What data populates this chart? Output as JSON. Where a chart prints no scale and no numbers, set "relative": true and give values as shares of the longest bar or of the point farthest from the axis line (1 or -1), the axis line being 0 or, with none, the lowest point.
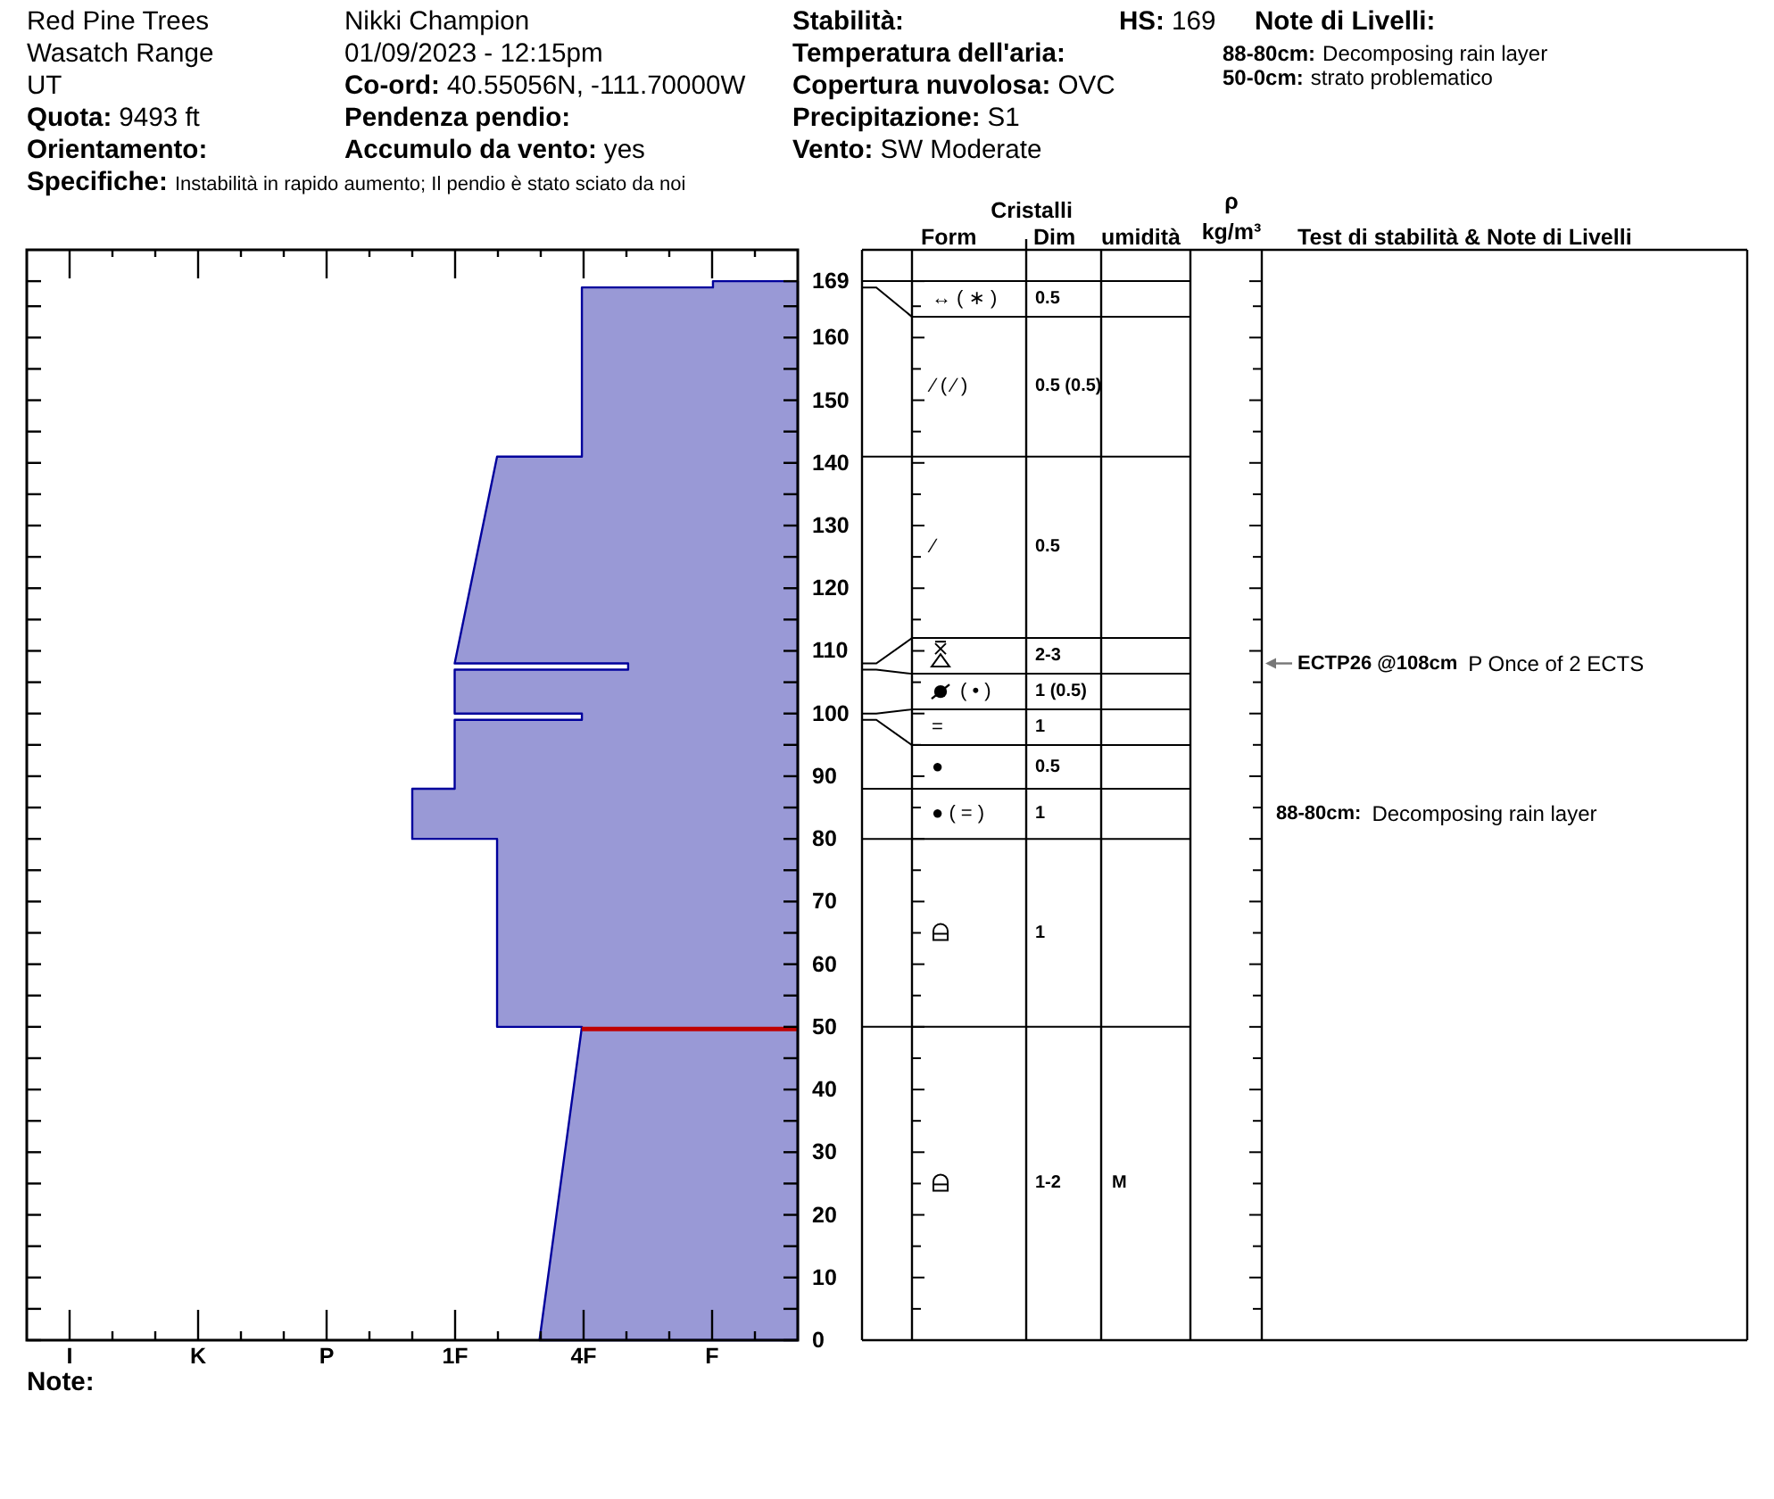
{
  "chart_data": [
    {
      "type": "other",
      "annotations": [
        "Red Pine Trees",
        "Wasatch Range",
        "UT",
        "Quota: 9493 ft",
        "Orientamento:",
        "Specifiche: Instabilità in rapido aumento; Il pendio è stato sciato da noi",
        "Nikki Champion",
        "01/09/2023 - 12:15pm",
        "Co-ord: 40.55056N, -111.70000W",
        "Pendenza pendio:",
        "Accumulo da vento: yes",
        "Stabilità:",
        "Temperatura dell'aria:",
        "Copertura nuvolosa: OVC",
        "Precipitazione: S1",
        "Vento: SW Moderate",
        "HS: 169",
        "Note di Livelli:",
        "88-80cm: Decomposing rain layer",
        "50-0cm: strato problematico",
        "Note:"
      ]
    },
    {
      "type": "area",
      "orientation": "horizontal",
      "relative": true,
      "color": "#9999d6",
      "x": [
        169,
        168,
        168,
        141,
        141,
        108,
        108,
        107,
        107,
        100,
        100,
        99,
        99,
        88,
        88,
        80,
        80,
        50,
        50,
        0
      ],
      "values": [
        -0.22,
        -0.22,
        -0.56,
        -0.56,
        -0.78,
        -0.89,
        -0.44,
        -0.44,
        -0.89,
        -0.89,
        -0.56,
        -0.56,
        -0.89,
        -0.89,
        -1,
        -1,
        -0.78,
        -0.78,
        -0.56,
        -0.67
      ],
      "annotations": [
        "I",
        "K",
        "P",
        "1F",
        "4F",
        "F"
      ],
      "ylim": [
        0,
        174
      ],
      "yticks": [
        0,
        {
          "value": 5,
          "label": null
        },
        10,
        {
          "value": 15,
          "label": null
        },
        20,
        {
          "value": 25,
          "label": null
        },
        30,
        {
          "value": 35,
          "label": null
        },
        40,
        {
          "value": 45,
          "label": null
        },
        50,
        {
          "value": 55,
          "label": null
        },
        60,
        {
          "value": 65,
          "label": null
        },
        70,
        {
          "value": 75,
          "label": null
        },
        80,
        {
          "value": 85,
          "label": null
        },
        90,
        {
          "value": 95,
          "label": null
        },
        100,
        {
          "value": 105,
          "label": null
        },
        110,
        {
          "value": 115,
          "label": null
        },
        120,
        {
          "value": 125,
          "label": null
        },
        130,
        {
          "value": 135,
          "label": null
        },
        140,
        {
          "value": 145,
          "label": null
        },
        150,
        {
          "value": 155,
          "label": null
        },
        160,
        {
          "value": 165,
          "label": null
        },
        169
      ],
      "ref_lines": [
        {
          "axis": "y",
          "value": 50,
          "color": "#c00000"
        }
      ]
    },
    {
      "type": "other",
      "xlabel": "Cristalli",
      "categories": [
        "Form",
        "Dim",
        "umidità",
        "ρ\nkg/m³",
        "Test di stabilità & Note di Livelli"
      ],
      "annotations": [
        "↔ ( ∗ )",
        "0.5",
        "⁄ ( ⁄ )",
        "0.5 (0.5)",
        "⁄",
        "0.5",
        "2-3",
        "ECTP26 @108cm",
        "P Once of 2 ECTS",
        "( • )",
        "1 (0.5)",
        "=",
        "1",
        "●",
        "0.5",
        "● ( = )",
        "1",
        "88-80cm:",
        "Decomposing rain layer",
        "1",
        "1-2",
        "M"
      ]
    }
  ]
}
